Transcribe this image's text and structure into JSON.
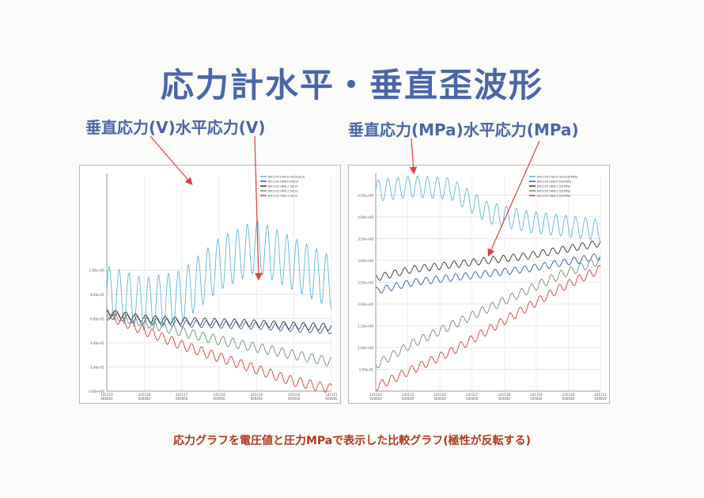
{
  "title": "応力計水平・垂直歪波形",
  "label_left": "垂直応力(V)水平応力(V)",
  "label_right": "垂直応力(MPa)水平応力(MPa)",
  "caption": "応力グラフを電圧値と圧力MPaで表示した比較グラフ(極性が反転する)",
  "colors": {
    "title": "#4a66a8",
    "caption": "#b13a20",
    "arrow": "#e0403a",
    "cyan": "#5fb6dc",
    "blue": "#2e5c9a",
    "dark": "#333333",
    "gray": "#6f8f6f",
    "red": "#d83a3a"
  },
  "chart_data": [
    {
      "type": "line",
      "unit": "V",
      "ylim": [
        0,
        1.8
      ],
      "yticks": [
        "0.00e+00",
        "2.00e-01",
        "4.00e-01",
        "6.00e-01",
        "8.00e-01",
        "1.00e+00"
      ],
      "xticks": [
        "141110\n000000",
        "141116\n000000",
        "141117\n000000",
        "141118\n000000",
        "141119\n000000",
        "141120\n000000",
        "141121\n000000"
      ],
      "legend": [
        "BR1195 FGB-H Vertical(V)",
        "BR1195 HRB-H N2(V)",
        "BR1195 HRB-1 S0(V)",
        "BR1195 HRB-2 S0(V)",
        "BR1195 HRB-3 S0(V)"
      ],
      "series": [
        {
          "name": "BR1195 FGB-H Vertical(V)",
          "color": "#5fb6dc",
          "x": [
            0,
            1,
            2,
            3,
            4,
            5,
            6
          ],
          "y": [
            0.82,
            0.72,
            0.78,
            1.05,
            1.2,
            1.05,
            0.9
          ]
        },
        {
          "name": "BR1195 HRB-H N2(V)",
          "color": "#2e5c9a",
          "x": [
            0,
            1,
            2,
            3,
            4,
            5,
            6
          ],
          "y": [
            0.63,
            0.58,
            0.56,
            0.55,
            0.54,
            0.52,
            0.5
          ]
        },
        {
          "name": "BR1195 HRB-1 S0(V)",
          "color": "#333333",
          "x": [
            0,
            1,
            2,
            3,
            4,
            5,
            6
          ],
          "y": [
            0.65,
            0.6,
            0.58,
            0.57,
            0.56,
            0.54,
            0.53
          ]
        },
        {
          "name": "BR1195 HRB-2 S0(V)",
          "color": "#6f8f6f",
          "x": [
            0,
            1,
            2,
            3,
            4,
            5,
            6
          ],
          "y": [
            0.64,
            0.57,
            0.49,
            0.42,
            0.36,
            0.3,
            0.24
          ]
        },
        {
          "name": "BR1195 HRB-3 S0(V)",
          "color": "#d83a3a",
          "x": [
            0,
            1,
            2,
            3,
            4,
            5,
            6
          ],
          "y": [
            0.63,
            0.5,
            0.38,
            0.28,
            0.18,
            0.08,
            0.02
          ]
        }
      ]
    },
    {
      "type": "line",
      "unit": "MPa",
      "ylim": [
        0,
        5
      ],
      "yticks": [
        "5.00e-01",
        "1.00e+00",
        "1.50e+00",
        "2.00e+00",
        "2.50e+00",
        "3.00e+00",
        "3.50e+00",
        "4.00e+00",
        "4.50e+00"
      ],
      "xticks": [
        "141110\n000000",
        "141115\n000000",
        "141116\n000000",
        "141117\n000000",
        "141118\n000000",
        "141119\n000000",
        "141120\n000000",
        "141121\n000000"
      ],
      "legend": [
        "BR1195 FGB-H Vertical(MPa)",
        "BR1195 HRB-H N2(MPa)",
        "BR1195 HRB-1 S0(MPa)",
        "BR1195 HRB-2 S0(MPa)",
        "BR1195 HRB-3 S0(MPa)"
      ],
      "series": [
        {
          "name": "BR1195 FGB-H Vertical(MPa)",
          "color": "#5fb6dc",
          "x": [
            0,
            1,
            2,
            3,
            4,
            5,
            6
          ],
          "y": [
            4.6,
            4.7,
            4.65,
            4.1,
            3.9,
            3.8,
            3.7
          ]
        },
        {
          "name": "BR1195 HRB-H N2(MPa)",
          "color": "#2e5c9a",
          "x": [
            0,
            1,
            2,
            3,
            4,
            5,
            6
          ],
          "y": [
            2.3,
            2.5,
            2.6,
            2.7,
            2.8,
            2.95,
            3.1
          ]
        },
        {
          "name": "BR1195 HRB-1 S0(MPa)",
          "color": "#333333",
          "x": [
            0,
            1,
            2,
            3,
            4,
            5,
            6
          ],
          "y": [
            2.6,
            2.8,
            2.9,
            3.0,
            3.1,
            3.25,
            3.4
          ]
        },
        {
          "name": "BR1195 HRB-2 S0(MPa)",
          "color": "#6f8f6f",
          "x": [
            0,
            1,
            2,
            3,
            4,
            5,
            6
          ],
          "y": [
            0.6,
            1.1,
            1.5,
            1.9,
            2.3,
            2.7,
            3.0
          ]
        },
        {
          "name": "BR1195 HRB-3 S0(MPa)",
          "color": "#d83a3a",
          "x": [
            0,
            1,
            2,
            3,
            4,
            5,
            6
          ],
          "y": [
            0.1,
            0.5,
            0.9,
            1.4,
            1.9,
            2.4,
            2.8
          ]
        }
      ]
    }
  ]
}
